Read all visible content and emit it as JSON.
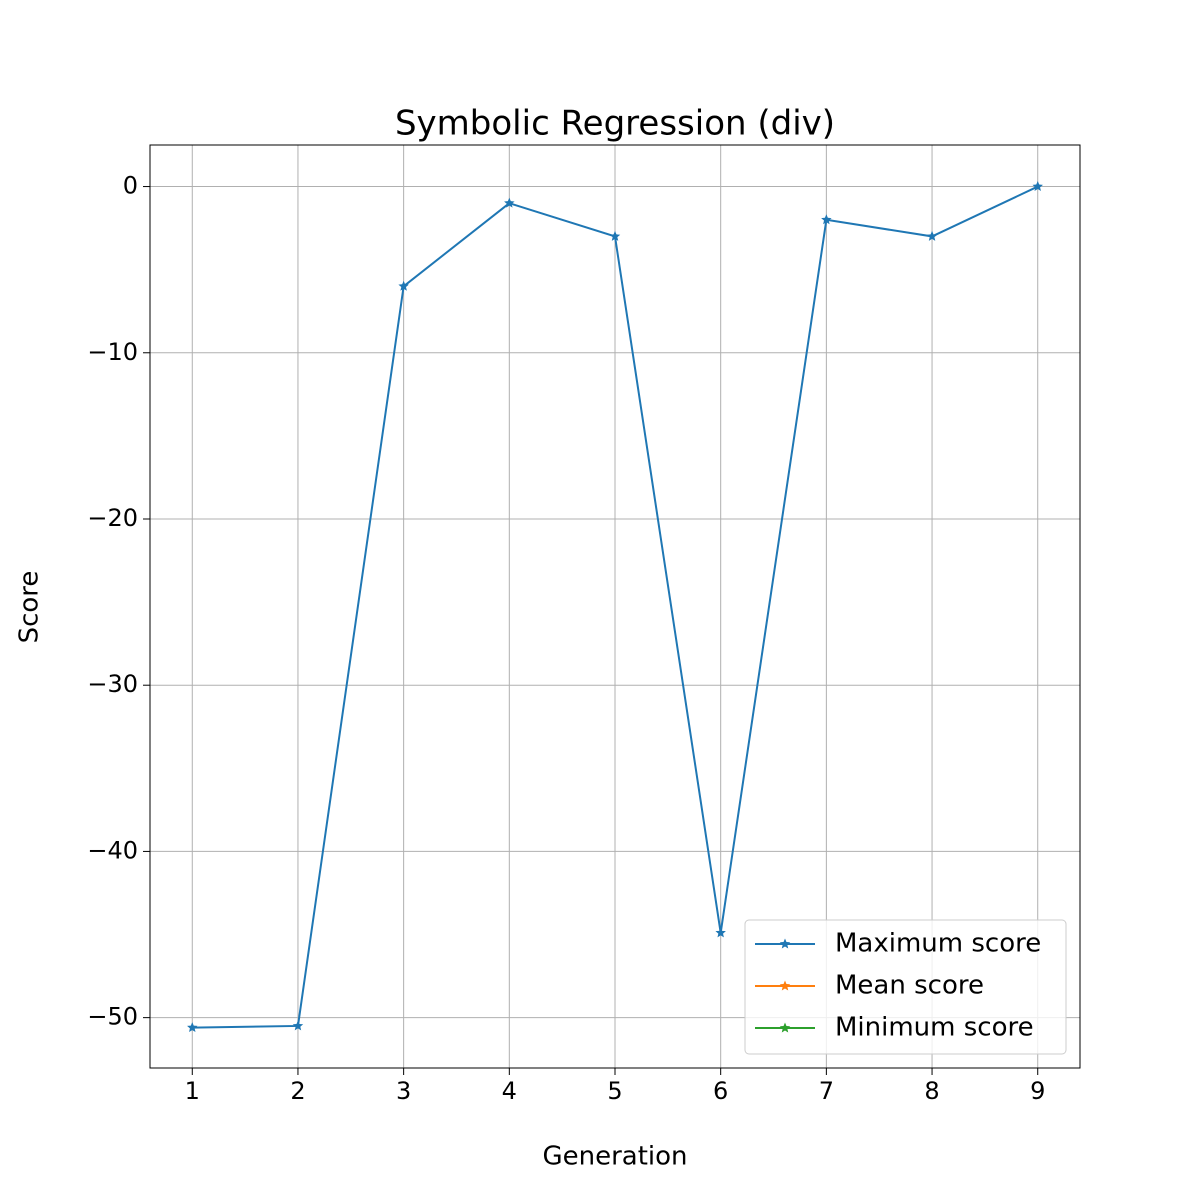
{
  "chart_data": {
    "type": "line",
    "title": "Symbolic Regression (div)",
    "xlabel": "Generation",
    "ylabel": "Score",
    "x": [
      1,
      2,
      3,
      4,
      5,
      6,
      7,
      8,
      9
    ],
    "series": [
      {
        "name": "Maximum score",
        "color": "#1f77b4",
        "values": [
          -50.6,
          -50.5,
          -6,
          -1,
          -3,
          -44.9,
          -2,
          -3,
          0
        ]
      },
      {
        "name": "Mean score",
        "color": "#ff7f0e",
        "values": [
          null,
          null,
          null,
          null,
          null,
          null,
          null,
          null,
          null
        ]
      },
      {
        "name": "Minimum score",
        "color": "#2ca02c",
        "values": [
          null,
          null,
          null,
          null,
          null,
          null,
          null,
          null,
          null
        ]
      }
    ],
    "xlim": [
      0.6,
      9.4
    ],
    "xticks": [
      1,
      2,
      3,
      4,
      5,
      6,
      7,
      8,
      9
    ],
    "ylim": [
      -53.03,
      2.5
    ],
    "yticks": [
      {
        "value": -50,
        "label": "−50"
      },
      {
        "value": -40,
        "label": "−40"
      },
      {
        "value": -30,
        "label": "−30"
      },
      {
        "value": -20,
        "label": "−20"
      },
      {
        "value": -10,
        "label": "−10"
      },
      0
    ],
    "grid": true,
    "legend": "lower right",
    "marker": "star"
  }
}
